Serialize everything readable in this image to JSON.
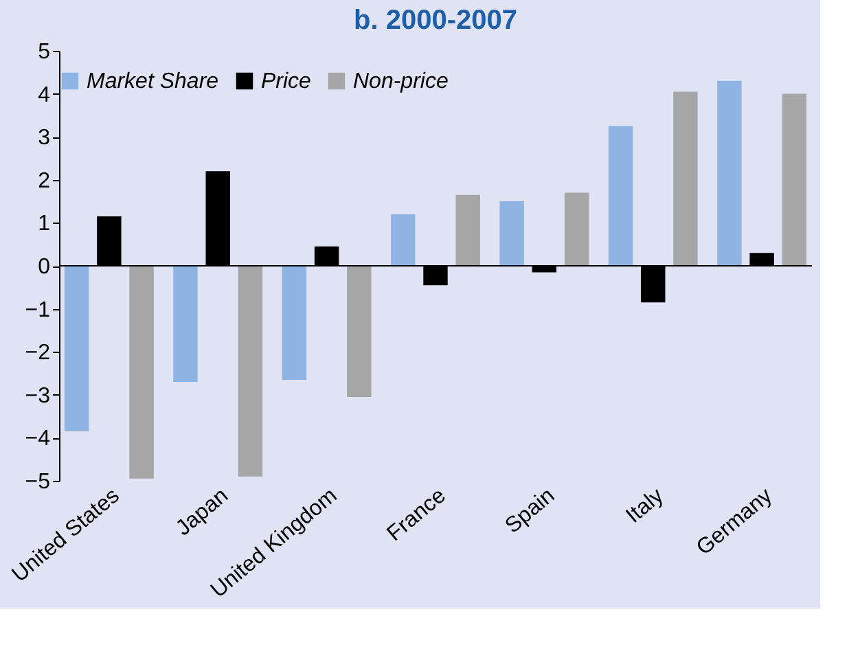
{
  "chart_data": {
    "type": "bar",
    "title": "b. 2000-2007",
    "categories": [
      "United States",
      "Japan",
      "United Kingdom",
      "France",
      "Spain",
      "Italy",
      "Germany"
    ],
    "series": [
      {
        "name": "Market Share",
        "color": "#8db4e2",
        "values": [
          -3.85,
          -2.7,
          -2.65,
          1.2,
          1.5,
          3.25,
          4.3
        ]
      },
      {
        "name": "Price",
        "color": "#000000",
        "values": [
          1.15,
          2.2,
          0.45,
          -0.45,
          -0.15,
          -0.85,
          0.3
        ]
      },
      {
        "name": "Non-price",
        "color": "#a6a6a6",
        "values": [
          -4.95,
          -4.9,
          -3.05,
          1.65,
          1.7,
          4.05,
          4.0
        ]
      }
    ],
    "ylim": [
      -5,
      5
    ],
    "yticks": [
      -5,
      -4,
      -3,
      -2,
      -1,
      0,
      1,
      2,
      3,
      4,
      5
    ],
    "legend": "top"
  }
}
